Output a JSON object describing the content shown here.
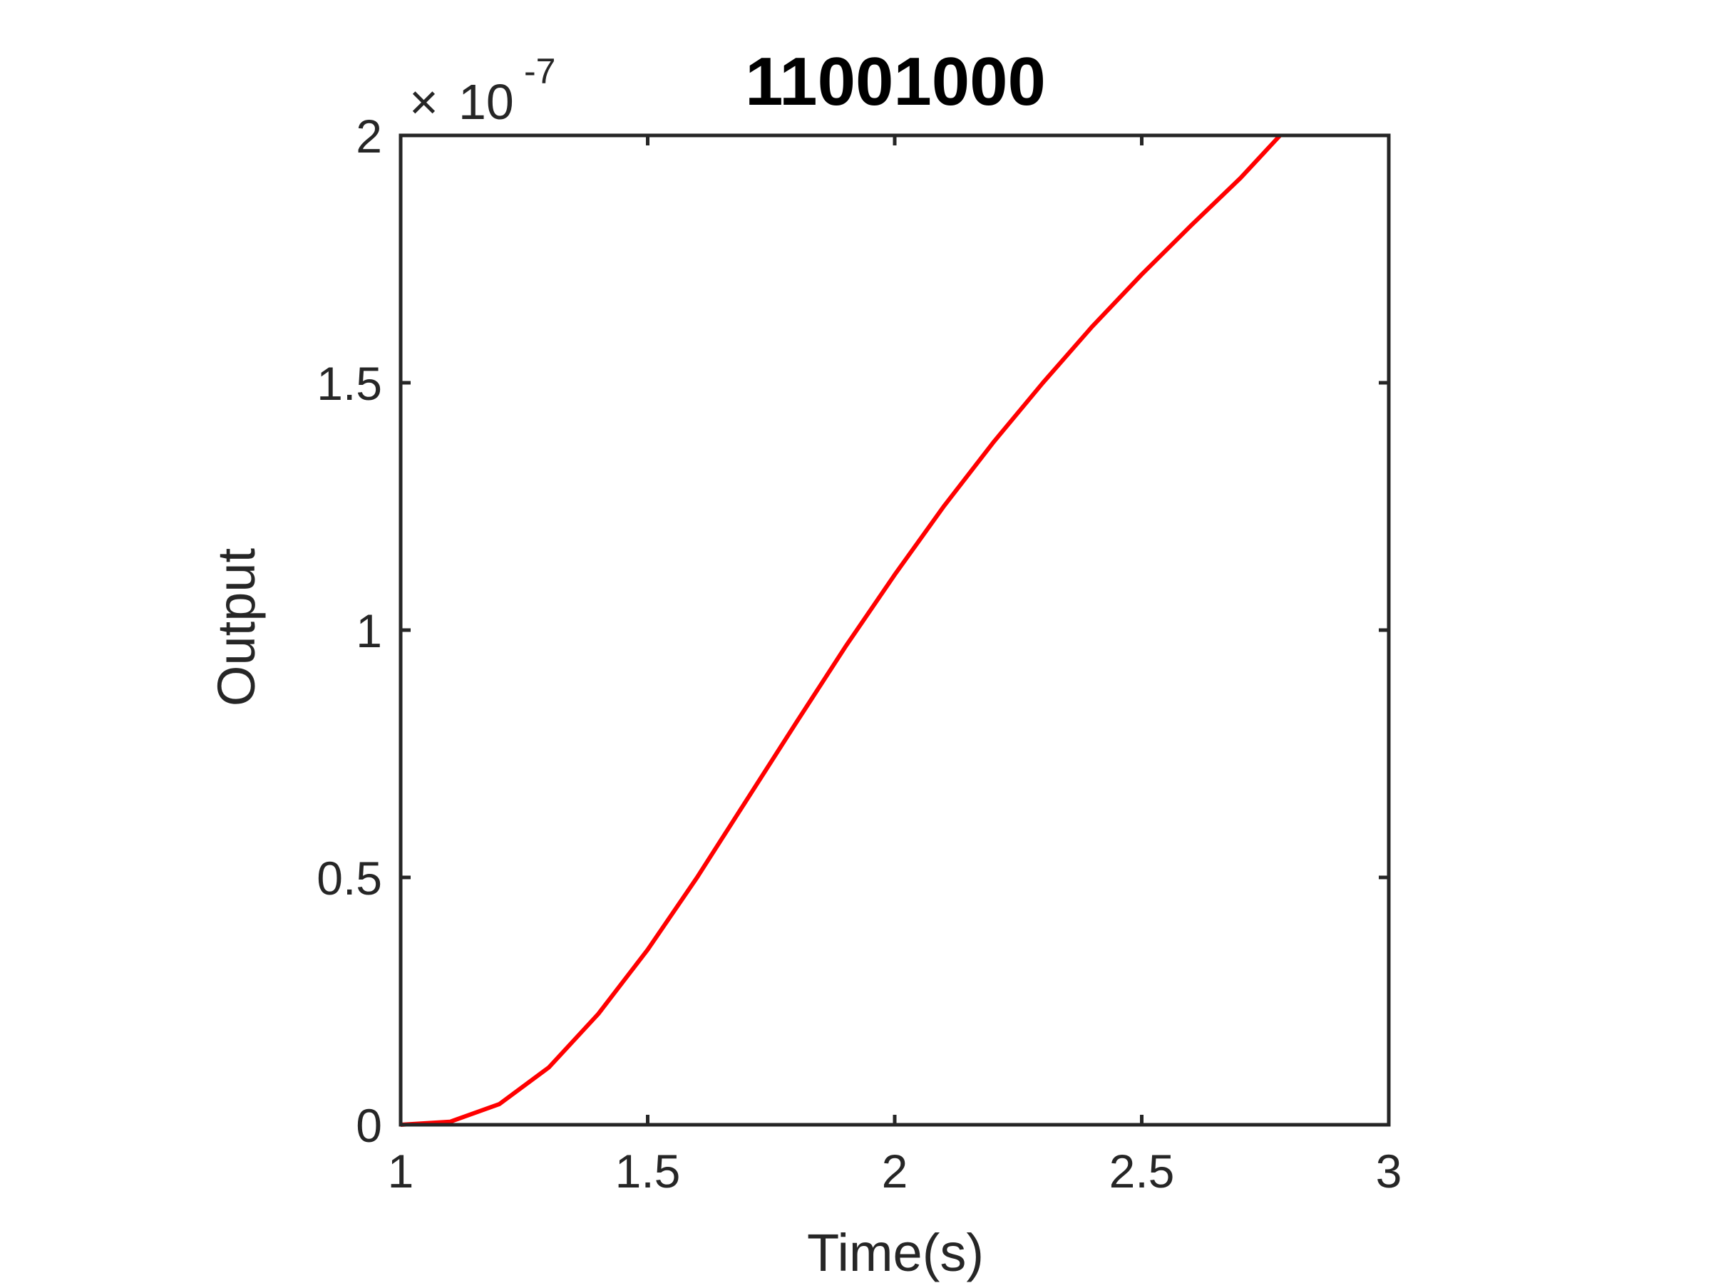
{
  "chart_data": {
    "type": "line",
    "title": "11001000",
    "xlabel": "Time(s)",
    "ylabel": "Output",
    "y_multiplier_base": "10",
    "y_multiplier_exponent": "-7",
    "xlim": [
      1,
      3
    ],
    "ylim": [
      0,
      2
    ],
    "x_ticks": [
      1,
      1.5,
      2,
      2.5,
      3
    ],
    "x_tick_labels": [
      "1",
      "1.5",
      "2",
      "2.5",
      "3"
    ],
    "y_ticks": [
      0,
      0.5,
      1,
      1.5,
      2
    ],
    "y_tick_labels": [
      "0",
      "0.5",
      "1",
      "1.5",
      "2"
    ],
    "grid": false,
    "legend": "none",
    "series": [
      {
        "color": "#ff0000",
        "x": [
          1.0,
          1.1,
          1.2,
          1.3,
          1.4,
          1.5,
          1.6,
          1.7,
          1.8,
          1.9,
          2.0,
          2.1,
          2.2,
          2.3,
          2.4,
          2.5,
          2.6,
          2.7,
          2.78
        ],
        "y": [
          0.0,
          0.006,
          0.042,
          0.116,
          0.224,
          0.354,
          0.5,
          0.656,
          0.812,
          0.966,
          1.112,
          1.251,
          1.38,
          1.5,
          1.614,
          1.719,
          1.818,
          1.914,
          2.0
        ]
      }
    ],
    "colors": {
      "axis": "#262626",
      "line": "#ff0000",
      "background": "#ffffff"
    }
  }
}
